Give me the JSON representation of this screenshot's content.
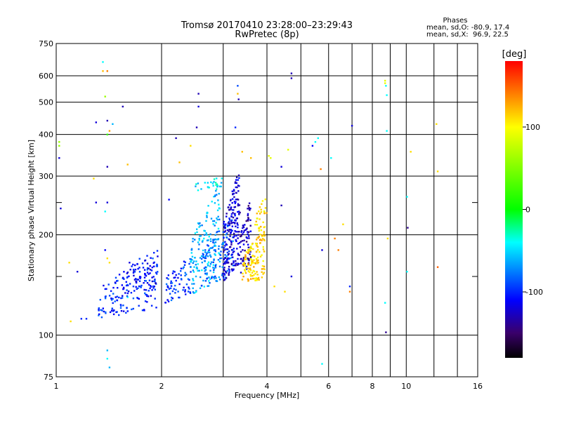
{
  "chart_data": {
    "type": "scatter",
    "title": "Tromsø 20170410 23:28:00–23:29:43",
    "subtitle": "RwPretec (8p)",
    "xlabel": "Frequency [MHz]",
    "ylabel": "Stationary phase Virtual Height [km]",
    "xscale": "log",
    "yscale": "log",
    "xlim": [
      1,
      16
    ],
    "ylim": [
      75,
      750
    ],
    "x_ticks": [
      1,
      2,
      4,
      6,
      8,
      10,
      16
    ],
    "x_minor_ticks": [
      3,
      5,
      7,
      9,
      12,
      14
    ],
    "y_ticks": [
      75,
      100,
      200,
      300,
      400,
      500,
      600,
      750
    ],
    "y_minor_ticks": [
      150,
      250
    ],
    "grid": true,
    "phase_box": {
      "title": "Phases",
      "line1": "mean, sd,O: -80.9, 17.4",
      "line2": "mean, sd,X:  96.9, 22.5"
    },
    "colorbar": {
      "label": "[deg]",
      "range": [
        -180,
        180
      ],
      "ticks": [
        100,
        0,
        -100
      ],
      "colors": [
        "#ff0000",
        "#ff7f00",
        "#ffff00",
        "#00ff00",
        "#00ffff",
        "#0000ff",
        "#3a006a",
        "#000000"
      ]
    },
    "series": [
      {
        "values": [
          {
            "x": 1.02,
            "y": 340,
            "phase": -120
          },
          {
            "x": 1.02,
            "y": 370,
            "phase": 60
          },
          {
            "x": 1.02,
            "y": 380,
            "phase": 60
          },
          {
            "x": 1.03,
            "y": 240,
            "phase": -120
          },
          {
            "x": 1.09,
            "y": 165,
            "phase": 110
          },
          {
            "x": 1.15,
            "y": 155,
            "phase": -120
          },
          {
            "x": 1.1,
            "y": 110,
            "phase": 110
          },
          {
            "x": 1.18,
            "y": 112,
            "phase": -100
          },
          {
            "x": 1.22,
            "y": 112,
            "phase": -100
          },
          {
            "x": 1.28,
            "y": 295,
            "phase": 110
          },
          {
            "x": 1.3,
            "y": 250,
            "phase": -120
          },
          {
            "x": 1.3,
            "y": 435,
            "phase": -120
          },
          {
            "x": 1.36,
            "y": 660,
            "phase": -40
          },
          {
            "x": 1.36,
            "y": 620,
            "phase": 120
          },
          {
            "x": 1.4,
            "y": 620,
            "phase": 140
          },
          {
            "x": 1.38,
            "y": 520,
            "phase": 60
          },
          {
            "x": 1.4,
            "y": 440,
            "phase": -130
          },
          {
            "x": 1.42,
            "y": 410,
            "phase": 130
          },
          {
            "x": 1.4,
            "y": 400,
            "phase": 20
          },
          {
            "x": 1.45,
            "y": 430,
            "phase": -60
          },
          {
            "x": 1.4,
            "y": 320,
            "phase": -130
          },
          {
            "x": 1.4,
            "y": 250,
            "phase": -120
          },
          {
            "x": 1.38,
            "y": 235,
            "phase": -40
          },
          {
            "x": 1.38,
            "y": 180,
            "phase": -110
          },
          {
            "x": 1.4,
            "y": 170,
            "phase": 110
          },
          {
            "x": 1.42,
            "y": 165,
            "phase": 110
          },
          {
            "x": 1.4,
            "y": 90,
            "phase": -60
          },
          {
            "x": 1.4,
            "y": 85,
            "phase": -40
          },
          {
            "x": 1.42,
            "y": 80,
            "phase": -60
          },
          {
            "x": 1.55,
            "y": 485,
            "phase": -130
          },
          {
            "x": 1.6,
            "y": 325,
            "phase": 120
          },
          {
            "x": 1.62,
            "y": 165,
            "phase": -120
          },
          {
            "x": 1.55,
            "y": 148,
            "phase": -60
          },
          {
            "x": 1.6,
            "y": 130,
            "phase": -40
          },
          {
            "x": 2.2,
            "y": 390,
            "phase": -130
          },
          {
            "x": 2.1,
            "y": 255,
            "phase": -110
          },
          {
            "x": 2.25,
            "y": 330,
            "phase": 120
          },
          {
            "x": 2.42,
            "y": 370,
            "phase": 110
          },
          {
            "x": 2.55,
            "y": 530,
            "phase": -130
          },
          {
            "x": 2.55,
            "y": 485,
            "phase": -120
          },
          {
            "x": 2.52,
            "y": 420,
            "phase": -130
          },
          {
            "x": 3.3,
            "y": 560,
            "phase": -90
          },
          {
            "x": 3.3,
            "y": 530,
            "phase": 120
          },
          {
            "x": 3.32,
            "y": 510,
            "phase": -130
          },
          {
            "x": 3.25,
            "y": 420,
            "phase": -100
          },
          {
            "x": 3.4,
            "y": 355,
            "phase": 120
          },
          {
            "x": 3.6,
            "y": 340,
            "phase": 120
          },
          {
            "x": 4.05,
            "y": 345,
            "phase": 90
          },
          {
            "x": 4.1,
            "y": 340,
            "phase": 90
          },
          {
            "x": 4.4,
            "y": 320,
            "phase": -120
          },
          {
            "x": 4.4,
            "y": 245,
            "phase": -130
          },
          {
            "x": 4.2,
            "y": 140,
            "phase": 110
          },
          {
            "x": 4.5,
            "y": 135,
            "phase": 110
          },
          {
            "x": 4.7,
            "y": 150,
            "phase": -120
          },
          {
            "x": 4.6,
            "y": 360,
            "phase": 90
          },
          {
            "x": 4.7,
            "y": 610,
            "phase": -130
          },
          {
            "x": 4.7,
            "y": 590,
            "phase": -130
          },
          {
            "x": 5.4,
            "y": 370,
            "phase": -110
          },
          {
            "x": 5.5,
            "y": 380,
            "phase": -40
          },
          {
            "x": 5.6,
            "y": 390,
            "phase": -40
          },
          {
            "x": 5.7,
            "y": 315,
            "phase": 140
          },
          {
            "x": 5.75,
            "y": 180,
            "phase": -120
          },
          {
            "x": 5.75,
            "y": 82,
            "phase": -40
          },
          {
            "x": 6.1,
            "y": 340,
            "phase": -40
          },
          {
            "x": 6.25,
            "y": 195,
            "phase": 140
          },
          {
            "x": 6.4,
            "y": 180,
            "phase": 140
          },
          {
            "x": 6.6,
            "y": 215,
            "phase": 110
          },
          {
            "x": 6.9,
            "y": 140,
            "phase": -100
          },
          {
            "x": 6.9,
            "y": 135,
            "phase": 140
          },
          {
            "x": 7.0,
            "y": 425,
            "phase": -120
          },
          {
            "x": 8.7,
            "y": 580,
            "phase": 90
          },
          {
            "x": 8.7,
            "y": 570,
            "phase": 90
          },
          {
            "x": 8.75,
            "y": 560,
            "phase": -40
          },
          {
            "x": 8.8,
            "y": 525,
            "phase": -40
          },
          {
            "x": 8.8,
            "y": 410,
            "phase": -40
          },
          {
            "x": 8.85,
            "y": 195,
            "phase": 110
          },
          {
            "x": 8.7,
            "y": 125,
            "phase": -40
          },
          {
            "x": 8.75,
            "y": 102,
            "phase": -140
          },
          {
            "x": 10.05,
            "y": 260,
            "phase": -40
          },
          {
            "x": 10.1,
            "y": 210,
            "phase": -140
          },
          {
            "x": 10.05,
            "y": 155,
            "phase": -40
          },
          {
            "x": 10.3,
            "y": 355,
            "phase": 110
          },
          {
            "x": 12.2,
            "y": 430,
            "phase": 110
          },
          {
            "x": 12.3,
            "y": 310,
            "phase": 110
          },
          {
            "x": 12.3,
            "y": 160,
            "phase": 150
          }
        ]
      }
    ],
    "clusters": [
      {
        "x0": 1.32,
        "x1": 1.95,
        "y0": 112,
        "y1": 175,
        "phase": -100,
        "n": 150
      },
      {
        "x0": 1.55,
        "x1": 1.95,
        "y0": 130,
        "y1": 185,
        "phase": -110,
        "n": 60
      },
      {
        "x0": 2.05,
        "x1": 2.45,
        "y0": 125,
        "y1": 180,
        "phase": -95,
        "n": 70
      },
      {
        "x0": 2.42,
        "x1": 2.95,
        "y0": 130,
        "y1": 290,
        "phase": -60,
        "n": 160
      },
      {
        "x0": 2.6,
        "x1": 3.2,
        "y0": 140,
        "y1": 230,
        "phase": -80,
        "n": 110
      },
      {
        "x0": 3.0,
        "x1": 3.35,
        "y0": 145,
        "y1": 320,
        "phase": -120,
        "n": 200
      },
      {
        "x0": 3.35,
        "x1": 3.6,
        "y0": 150,
        "y1": 260,
        "phase": -130,
        "n": 80
      },
      {
        "x0": 3.4,
        "x1": 3.95,
        "y0": 140,
        "y1": 210,
        "phase": 115,
        "n": 130
      },
      {
        "x0": 3.7,
        "x1": 4.0,
        "y0": 200,
        "y1": 265,
        "phase": 110,
        "n": 30
      },
      {
        "x0": 2.5,
        "x1": 3.0,
        "y0": 270,
        "y1": 300,
        "phase": -45,
        "n": 25
      }
    ]
  }
}
